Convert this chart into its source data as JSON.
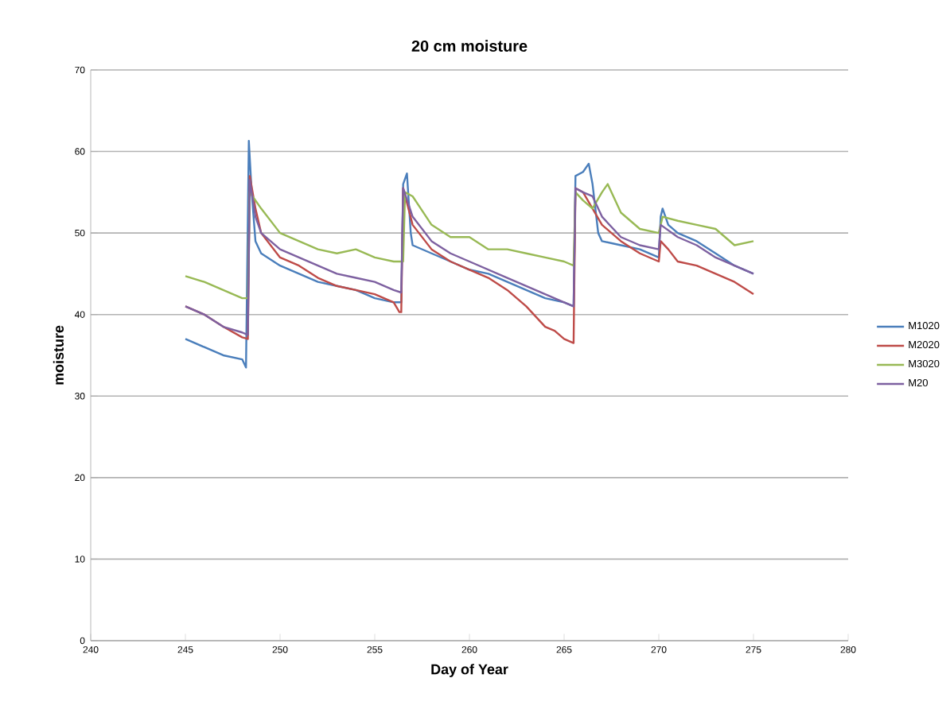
{
  "chart_data": {
    "type": "line",
    "title": "20 cm moisture",
    "xlabel": "Day of Year",
    "ylabel": "moisture",
    "xlim": [
      240,
      280
    ],
    "xticks": [
      240,
      245,
      250,
      255,
      260,
      265,
      270,
      275,
      280
    ],
    "ylim": [
      0,
      70
    ],
    "yticks": [
      0,
      10,
      20,
      30,
      40,
      50,
      60,
      70
    ],
    "grid": "y",
    "legend": "right",
    "marker": "none",
    "line_style": "solid",
    "series": [
      {
        "name": "M1020",
        "color": "#4a7ebb",
        "x": [
          245,
          246,
          247,
          248,
          248.2,
          248.35,
          248.5,
          248.7,
          249,
          250,
          251,
          252,
          253,
          254,
          255,
          256,
          256.4,
          256.5,
          256.7,
          256.9,
          257,
          258,
          259,
          260,
          261,
          262,
          263,
          264,
          265,
          265.5,
          265.6,
          266,
          266.3,
          266.5,
          266.8,
          267,
          268,
          269,
          270,
          270.1,
          270.2,
          270.5,
          271,
          272,
          273,
          274,
          275
        ],
        "values": [
          37,
          36,
          35,
          34.5,
          33.5,
          61.3,
          55,
          49,
          47.5,
          46,
          45,
          44,
          43.5,
          43,
          42,
          41.5,
          41.5,
          56,
          57.3,
          50,
          48.5,
          47.5,
          46.5,
          45.5,
          45,
          44,
          43,
          42,
          41.5,
          41,
          57,
          57.5,
          58.5,
          56,
          50,
          49,
          48.5,
          48,
          47,
          52,
          53,
          51,
          50,
          49,
          47.5,
          46,
          45
        ]
      },
      {
        "name": "M2020",
        "color": "#be4b48",
        "x": [
          245,
          246,
          247,
          248,
          248.3,
          248.4,
          248.7,
          249,
          250,
          251,
          252,
          253,
          254,
          255,
          256,
          256.3,
          256.4,
          256.5,
          257,
          258,
          259,
          260,
          261,
          262,
          263,
          264,
          264.5,
          265,
          265.5,
          265.6,
          266,
          266.5,
          267,
          268,
          269,
          270,
          270.1,
          270.5,
          271,
          272,
          273,
          274,
          275
        ],
        "values": [
          41,
          40,
          38.5,
          37.2,
          37,
          57,
          53,
          50,
          47,
          46,
          44.5,
          43.5,
          43,
          42.5,
          41.5,
          40.3,
          40.3,
          55.5,
          51,
          48,
          46.5,
          45.5,
          44.5,
          43,
          41,
          38.5,
          38,
          37,
          36.5,
          55.5,
          55,
          53,
          51,
          49,
          47.5,
          46.5,
          49,
          48,
          46.5,
          46,
          45,
          44,
          42.5
        ]
      },
      {
        "name": "M3020",
        "color": "#98b954",
        "x": [
          245,
          246,
          247,
          248,
          248.3,
          248.4,
          249,
          250,
          251,
          252,
          253,
          254,
          255,
          256,
          256.5,
          256.6,
          257,
          258,
          259,
          260,
          261,
          262,
          263,
          264,
          265,
          265.5,
          265.6,
          266,
          266.5,
          267,
          267.3,
          268,
          269,
          270,
          270.2,
          271,
          272,
          273,
          274,
          275
        ],
        "values": [
          44.7,
          44,
          43,
          42,
          42,
          55,
          53,
          50,
          49,
          48,
          47.5,
          48,
          47,
          46.5,
          46.5,
          55,
          54.5,
          51,
          49.5,
          49.5,
          48,
          48,
          47.5,
          47,
          46.5,
          46,
          55,
          54,
          53,
          55,
          56,
          52.5,
          50.5,
          50,
          52,
          51.5,
          51,
          50.5,
          48.5,
          49
        ]
      },
      {
        "name": "M20",
        "color": "#7d60a0",
        "x": [
          245,
          246,
          247,
          248,
          248.3,
          248.4,
          248.7,
          249,
          250,
          251,
          252,
          253,
          254,
          255,
          256,
          256.4,
          256.5,
          257,
          258,
          259,
          260,
          261,
          262,
          263,
          264,
          265,
          265.5,
          265.6,
          266,
          266.5,
          267,
          268,
          269,
          270,
          270.1,
          271,
          272,
          273,
          274,
          275
        ],
        "values": [
          41,
          40,
          38.5,
          37.8,
          37.5,
          56.5,
          52,
          50,
          48,
          47,
          46,
          45,
          44.5,
          44,
          43,
          42.7,
          55.5,
          52,
          49,
          47.5,
          46.5,
          45.5,
          44.5,
          43.5,
          42.5,
          41.5,
          41,
          55.5,
          55,
          54.5,
          52,
          49.5,
          48.5,
          48,
          51,
          49.5,
          48.5,
          47,
          46,
          45
        ]
      }
    ]
  }
}
